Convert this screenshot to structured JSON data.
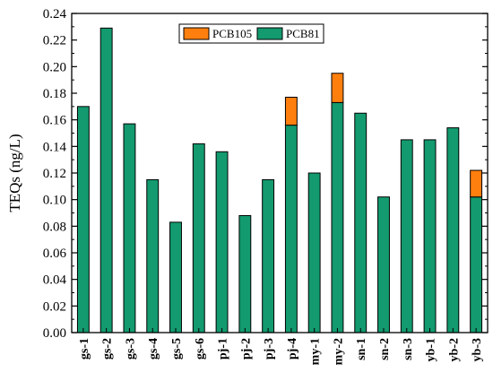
{
  "chart_data": {
    "type": "bar",
    "stacked": true,
    "categories": [
      "gs-1",
      "gs-2",
      "gs-3",
      "gs-4",
      "gs-5",
      "gs-6",
      "pj-1",
      "pj-2",
      "pj-3",
      "pj-4",
      "my-1",
      "my-2",
      "sn-1",
      "sn-2",
      "sn-3",
      "yb-1",
      "yb-2",
      "yb-3"
    ],
    "series": [
      {
        "name": "PCB81",
        "color": "#139a6f",
        "values": [
          0.17,
          0.229,
          0.157,
          0.115,
          0.083,
          0.142,
          0.136,
          0.088,
          0.115,
          0.156,
          0.12,
          0.173,
          0.165,
          0.102,
          0.145,
          0.145,
          0.154,
          0.102
        ]
      },
      {
        "name": "PCB105",
        "color": "#ff7f0e",
        "values": [
          0,
          0,
          0,
          0,
          0,
          0,
          0,
          0,
          0,
          0.021,
          0,
          0.022,
          0,
          0,
          0,
          0,
          0,
          0.02
        ]
      }
    ],
    "ylabel": "TEQs (ng/L)",
    "xlabel": "",
    "title": "",
    "ylim": [
      0,
      0.24
    ],
    "yticks": [
      "0.00",
      "0.02",
      "0.04",
      "0.06",
      "0.08",
      "0.10",
      "0.12",
      "0.14",
      "0.16",
      "0.18",
      "0.20",
      "0.22",
      "0.24"
    ],
    "legend": {
      "position": "top-center",
      "entries": [
        "PCB105",
        "PCB81"
      ]
    },
    "grid": false
  }
}
